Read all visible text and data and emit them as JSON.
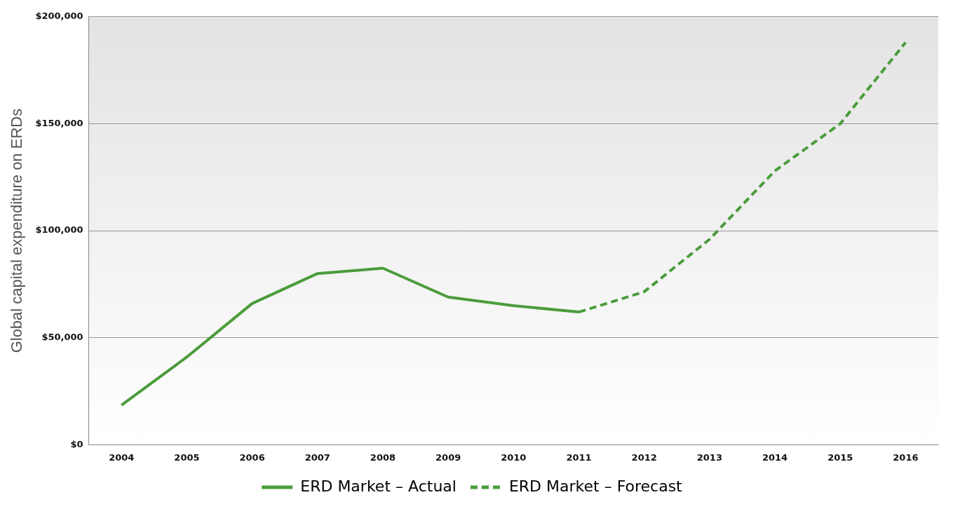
{
  "chart_data": {
    "type": "line",
    "ylabel": "Global capital expenditure on ERDs",
    "categories": [
      "2004",
      "2005",
      "2006",
      "2007",
      "2008",
      "2009",
      "2010",
      "2011",
      "2012",
      "2013",
      "2014",
      "2015",
      "2016"
    ],
    "series": [
      {
        "name": "ERD Market – Actual",
        "color": "#4a9c3b",
        "line_style": "solid",
        "values": [
          18500,
          41000,
          66000,
          80000,
          82500,
          69000,
          65000,
          62000,
          null,
          null,
          null,
          null,
          null
        ]
      },
      {
        "name": "ERD Market – Forecast",
        "color": "#4a9c3b",
        "line_style": "dashed",
        "values": [
          null,
          null,
          null,
          null,
          null,
          null,
          null,
          62000,
          71500,
          96000,
          128000,
          150000,
          188000
        ]
      }
    ],
    "ylim": [
      0,
      200000
    ],
    "yticks": [
      {
        "value": 0,
        "label": "$0"
      },
      {
        "value": 50000,
        "label": "$50,000"
      },
      {
        "value": 100000,
        "label": "$100,000"
      },
      {
        "value": 150000,
        "label": "$150,000"
      },
      {
        "value": 200000,
        "label": "$200,000"
      }
    ],
    "grid": "y",
    "legend": "bottom",
    "marker": "none"
  }
}
